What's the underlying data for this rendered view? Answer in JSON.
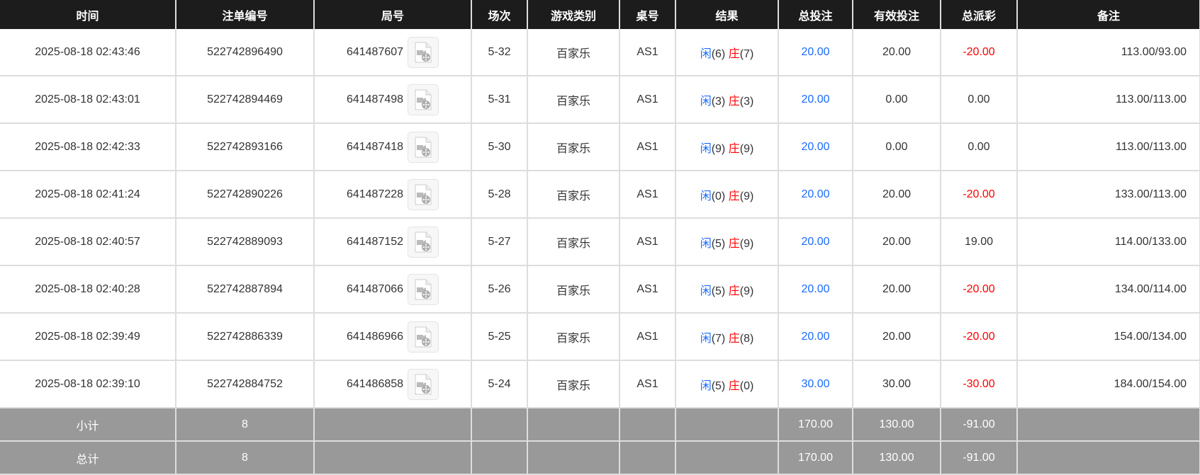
{
  "headers": [
    "时间",
    "注单编号",
    "局号",
    "场次",
    "游戏类别",
    "桌号",
    "结果",
    "总投注",
    "有效投注",
    "总派彩",
    "备注"
  ],
  "rows": [
    {
      "time": "2025-08-18 02:43:46",
      "bet_id": "522742896490",
      "round": "641487607",
      "shoe": "5-32",
      "game": "百家乐",
      "table": "AS1",
      "player_label": "闲",
      "player": "(6)",
      "banker_label": "庄",
      "banker": "(7)",
      "total_bet": "20.00",
      "valid_bet": "20.00",
      "payout": "-20.00",
      "payout_negative": true,
      "note": "113.00/93.00"
    },
    {
      "time": "2025-08-18 02:43:01",
      "bet_id": "522742894469",
      "round": "641487498",
      "shoe": "5-31",
      "game": "百家乐",
      "table": "AS1",
      "player_label": "闲",
      "player": "(3)",
      "banker_label": "庄",
      "banker": "(3)",
      "total_bet": "20.00",
      "valid_bet": "0.00",
      "payout": "0.00",
      "payout_negative": false,
      "note": "113.00/113.00"
    },
    {
      "time": "2025-08-18 02:42:33",
      "bet_id": "522742893166",
      "round": "641487418",
      "shoe": "5-30",
      "game": "百家乐",
      "table": "AS1",
      "player_label": "闲",
      "player": "(9)",
      "banker_label": "庄",
      "banker": "(9)",
      "total_bet": "20.00",
      "valid_bet": "0.00",
      "payout": "0.00",
      "payout_negative": false,
      "note": "113.00/113.00"
    },
    {
      "time": "2025-08-18 02:41:24",
      "bet_id": "522742890226",
      "round": "641487228",
      "shoe": "5-28",
      "game": "百家乐",
      "table": "AS1",
      "player_label": "闲",
      "player": "(0)",
      "banker_label": "庄",
      "banker": "(9)",
      "total_bet": "20.00",
      "valid_bet": "20.00",
      "payout": "-20.00",
      "payout_negative": true,
      "note": "133.00/113.00"
    },
    {
      "time": "2025-08-18 02:40:57",
      "bet_id": "522742889093",
      "round": "641487152",
      "shoe": "5-27",
      "game": "百家乐",
      "table": "AS1",
      "player_label": "闲",
      "player": "(5)",
      "banker_label": "庄",
      "banker": "(9)",
      "total_bet": "20.00",
      "valid_bet": "20.00",
      "payout": "19.00",
      "payout_negative": false,
      "note": "114.00/133.00"
    },
    {
      "time": "2025-08-18 02:40:28",
      "bet_id": "522742887894",
      "round": "641487066",
      "shoe": "5-26",
      "game": "百家乐",
      "table": "AS1",
      "player_label": "闲",
      "player": "(5)",
      "banker_label": "庄",
      "banker": "(9)",
      "total_bet": "20.00",
      "valid_bet": "20.00",
      "payout": "-20.00",
      "payout_negative": true,
      "note": "134.00/114.00"
    },
    {
      "time": "2025-08-18 02:39:49",
      "bet_id": "522742886339",
      "round": "641486966",
      "shoe": "5-25",
      "game": "百家乐",
      "table": "AS1",
      "player_label": "闲",
      "player": "(7)",
      "banker_label": "庄",
      "banker": "(8)",
      "total_bet": "20.00",
      "valid_bet": "20.00",
      "payout": "-20.00",
      "payout_negative": true,
      "note": "154.00/134.00"
    },
    {
      "time": "2025-08-18 02:39:10",
      "bet_id": "522742884752",
      "round": "641486858",
      "shoe": "5-24",
      "game": "百家乐",
      "table": "AS1",
      "player_label": "闲",
      "player": "(5)",
      "banker_label": "庄",
      "banker": "(0)",
      "total_bet": "30.00",
      "valid_bet": "30.00",
      "payout": "-30.00",
      "payout_negative": true,
      "note": "184.00/154.00"
    }
  ],
  "subtotal": {
    "label": "小计",
    "count": "8",
    "total_bet": "170.00",
    "valid_bet": "130.00",
    "payout": "-91.00"
  },
  "total": {
    "label": "总计",
    "count": "8",
    "total_bet": "170.00",
    "valid_bet": "130.00",
    "payout": "-91.00"
  },
  "icons": {
    "replay": "video-file-icon"
  },
  "colors": {
    "header_bg": "#1c1c1c",
    "blue": "#1a6cff",
    "red": "#ff0000",
    "summary_bg": "#999999"
  }
}
